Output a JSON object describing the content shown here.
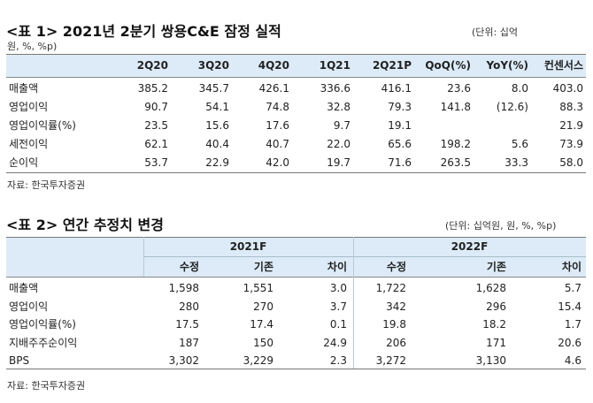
{
  "table1": {
    "title": "<표 1> 2021년 2분기 쌍용C&E 잠정 실적",
    "unit_line1": "(단위: 십억",
    "unit_line2": "원, %, %p)",
    "headers": [
      "2Q20",
      "3Q20",
      "4Q20",
      "1Q21",
      "2Q21P",
      "QoQ(%)",
      "YoY(%)",
      "컨센서스"
    ],
    "rows": [
      {
        "label": "매출액",
        "values": [
          "385.2",
          "345.7",
          "426.1",
          "336.6",
          "416.1",
          "23.6",
          "8.0",
          "403.0"
        ]
      },
      {
        "label": "영업이익",
        "values": [
          "90.7",
          "54.1",
          "74.8",
          "32.8",
          "79.3",
          "141.8",
          "(12.6)",
          "88.3"
        ]
      },
      {
        "label": "영업이익률(%)",
        "values": [
          "23.5",
          "15.6",
          "17.6",
          "9.7",
          "19.1",
          "",
          "",
          "21.9"
        ]
      },
      {
        "label": "세전이익",
        "values": [
          "62.1",
          "40.4",
          "40.7",
          "22.0",
          "65.6",
          "198.2",
          "5.6",
          "73.9"
        ]
      },
      {
        "label": "순이익",
        "values": [
          "53.7",
          "22.9",
          "42.0",
          "19.7",
          "71.6",
          "263.5",
          "33.3",
          "58.0"
        ]
      }
    ],
    "source": "자료: 한국투자증권"
  },
  "table2": {
    "title": "<표 2> 연간 추정치 변경",
    "unit": "(단위: 십억원, 원, %, %p)",
    "groups": [
      "2021F",
      "2022F"
    ],
    "subheaders": [
      "수정",
      "기존",
      "차이",
      "수정",
      "기존",
      "차이"
    ],
    "rows": [
      {
        "label": "매출액",
        "values": [
          "1,598",
          "1,551",
          "3.0",
          "1,722",
          "1,628",
          "5.7"
        ]
      },
      {
        "label": "영업이익",
        "values": [
          "280",
          "270",
          "3.7",
          "342",
          "296",
          "15.4"
        ]
      },
      {
        "label": "영업이익률(%)",
        "values": [
          "17.5",
          "17.4",
          "0.1",
          "19.8",
          "18.2",
          "1.7"
        ]
      },
      {
        "label": "지배주주순이익",
        "values": [
          "187",
          "150",
          "24.9",
          "206",
          "171",
          "20.6"
        ]
      },
      {
        "label": "BPS",
        "values": [
          "3,302",
          "3,229",
          "2.3",
          "3,272",
          "3,130",
          "4.6"
        ]
      }
    ],
    "source": "자료: 한국투자증권"
  }
}
